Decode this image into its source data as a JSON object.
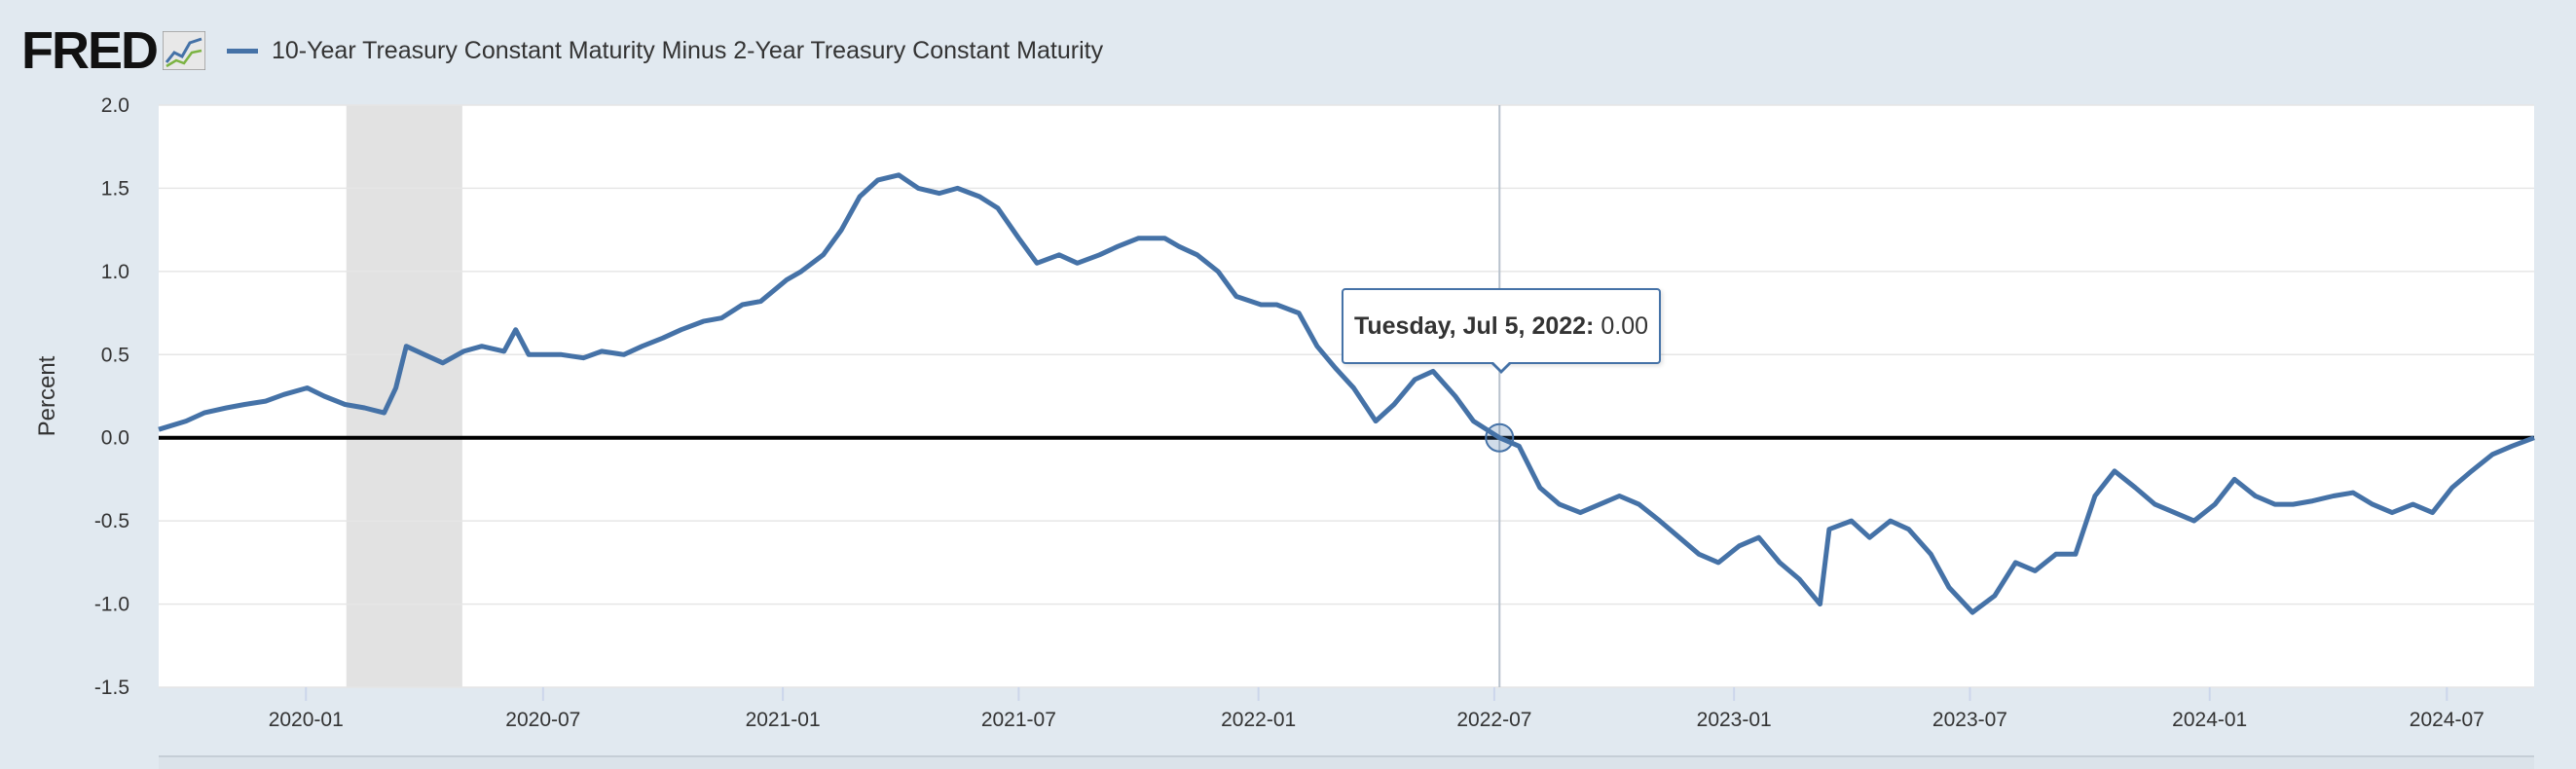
{
  "header": {
    "logo": "FRED",
    "series_label": "10-Year Treasury Constant Maturity Minus 2-Year Treasury Constant Maturity",
    "logo_icon": "chart-line-icon"
  },
  "tooltip": {
    "date": "Tuesday, Jul 5, 2022:",
    "value": "0.00"
  },
  "colors": {
    "series": "#4572a7",
    "plot_background": "#ffffff",
    "page_background": "#e1e9f0",
    "recession": "#e2e2e2",
    "zero_line": "#000000",
    "grid": "#e6e6e6"
  },
  "chart_data": {
    "type": "line",
    "ylabel": "Percent",
    "ylim": [
      -1.5,
      2.0
    ],
    "yticks": [
      -1.5,
      -1.0,
      -0.5,
      0.0,
      0.5,
      1.0,
      1.5,
      2.0
    ],
    "ytick_labels": [
      "-1.5",
      "-1.0",
      "-0.5",
      "0.0",
      "0.5",
      "1.0",
      "1.5",
      "2.0"
    ],
    "xlim": [
      "2019-09-10",
      "2024-09-06"
    ],
    "xticks": [
      "2020-01-01",
      "2020-07-01",
      "2021-01-01",
      "2021-07-01",
      "2022-01-01",
      "2022-07-01",
      "2023-01-01",
      "2023-07-01",
      "2024-01-01",
      "2024-07-01"
    ],
    "xtick_labels": [
      "2020-01",
      "2020-07",
      "2021-01",
      "2021-07",
      "2022-01",
      "2022-07",
      "2023-01",
      "2023-07",
      "2024-01",
      "2024-07"
    ],
    "recession_shading": [
      [
        "2020-02-01",
        "2020-04-30"
      ]
    ],
    "reference_line": 0.0,
    "highlight": {
      "x": "2022-07-05",
      "y": 0.0
    },
    "grid": true,
    "series": [
      {
        "x": [
          "2019-09-10",
          "2019-10-01",
          "2019-10-15",
          "2019-11-01",
          "2019-11-15",
          "2019-12-01",
          "2019-12-15",
          "2020-01-02",
          "2020-01-15",
          "2020-01-31",
          "2020-02-15",
          "2020-03-01",
          "2020-03-10",
          "2020-03-18",
          "2020-04-01",
          "2020-04-15",
          "2020-05-01",
          "2020-05-15",
          "2020-06-01",
          "2020-06-10",
          "2020-06-20",
          "2020-07-01",
          "2020-07-15",
          "2020-08-01",
          "2020-08-15",
          "2020-09-01",
          "2020-09-15",
          "2020-10-01",
          "2020-10-15",
          "2020-11-01",
          "2020-11-15",
          "2020-12-01",
          "2020-12-15",
          "2021-01-04",
          "2021-01-15",
          "2021-02-01",
          "2021-02-15",
          "2021-03-01",
          "2021-03-15",
          "2021-03-31",
          "2021-04-15",
          "2021-05-01",
          "2021-05-15",
          "2021-06-01",
          "2021-06-15",
          "2021-07-01",
          "2021-07-15",
          "2021-08-01",
          "2021-08-15",
          "2021-09-01",
          "2021-09-15",
          "2021-10-01",
          "2021-10-21",
          "2021-11-01",
          "2021-11-15",
          "2021-12-01",
          "2021-12-15",
          "2022-01-03",
          "2022-01-15",
          "2022-02-01",
          "2022-02-15",
          "2022-03-01",
          "2022-03-15",
          "2022-04-01",
          "2022-04-15",
          "2022-05-01",
          "2022-05-15",
          "2022-06-01",
          "2022-06-15",
          "2022-07-05",
          "2022-07-20",
          "2022-08-05",
          "2022-08-20",
          "2022-09-05",
          "2022-09-20",
          "2022-10-05",
          "2022-10-20",
          "2022-11-05",
          "2022-11-20",
          "2022-12-05",
          "2022-12-20",
          "2023-01-05",
          "2023-01-20",
          "2023-02-05",
          "2023-02-20",
          "2023-03-08",
          "2023-03-15",
          "2023-04-01",
          "2023-04-15",
          "2023-05-01",
          "2023-05-15",
          "2023-06-01",
          "2023-06-15",
          "2023-07-03",
          "2023-07-20",
          "2023-08-05",
          "2023-08-20",
          "2023-09-05",
          "2023-09-20",
          "2023-10-05",
          "2023-10-20",
          "2023-11-05",
          "2023-11-20",
          "2023-12-05",
          "2023-12-20",
          "2024-01-05",
          "2024-01-20",
          "2024-02-05",
          "2024-02-20",
          "2024-03-05",
          "2024-03-20",
          "2024-04-05",
          "2024-04-20",
          "2024-05-05",
          "2024-05-20",
          "2024-06-05",
          "2024-06-20",
          "2024-07-05",
          "2024-07-20",
          "2024-08-05",
          "2024-08-20",
          "2024-09-06"
        ],
        "values": [
          0.05,
          0.1,
          0.15,
          0.18,
          0.2,
          0.22,
          0.26,
          0.3,
          0.25,
          0.2,
          0.18,
          0.15,
          0.3,
          0.55,
          0.5,
          0.45,
          0.52,
          0.55,
          0.52,
          0.65,
          0.5,
          0.5,
          0.5,
          0.48,
          0.52,
          0.5,
          0.55,
          0.6,
          0.65,
          0.7,
          0.72,
          0.8,
          0.82,
          0.95,
          1.0,
          1.1,
          1.25,
          1.45,
          1.55,
          1.58,
          1.5,
          1.47,
          1.5,
          1.45,
          1.38,
          1.2,
          1.05,
          1.1,
          1.05,
          1.1,
          1.15,
          1.2,
          1.2,
          1.15,
          1.1,
          1.0,
          0.85,
          0.8,
          0.8,
          0.75,
          0.55,
          0.42,
          0.3,
          0.1,
          0.2,
          0.35,
          0.4,
          0.25,
          0.1,
          0.0,
          -0.05,
          -0.3,
          -0.4,
          -0.45,
          -0.4,
          -0.35,
          -0.4,
          -0.5,
          -0.6,
          -0.7,
          -0.75,
          -0.65,
          -0.6,
          -0.75,
          -0.85,
          -1.0,
          -0.55,
          -0.5,
          -0.6,
          -0.5,
          -0.55,
          -0.7,
          -0.9,
          -1.05,
          -0.95,
          -0.75,
          -0.8,
          -0.7,
          -0.7,
          -0.35,
          -0.2,
          -0.3,
          -0.4,
          -0.45,
          -0.5,
          -0.4,
          -0.25,
          -0.35,
          -0.4,
          -0.4,
          -0.38,
          -0.35,
          -0.33,
          -0.4,
          -0.45,
          -0.4,
          -0.45,
          -0.3,
          -0.2,
          -0.1,
          -0.05,
          0.0
        ]
      }
    ]
  }
}
